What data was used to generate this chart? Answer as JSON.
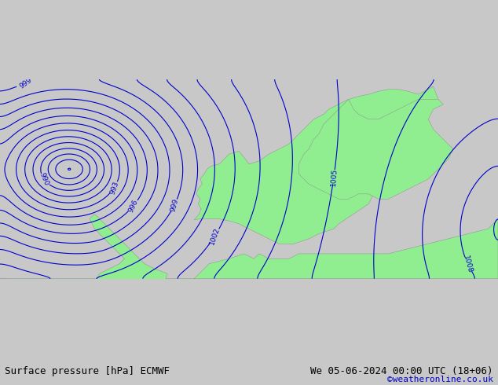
{
  "title_left": "Surface pressure [hPa] ECMWF",
  "title_right": "We 05-06-2024 00:00 UTC (18+06)",
  "copyright": "©weatheronline.co.uk",
  "bg_color": "#d0d0d0",
  "land_color": "#90EE90",
  "sea_color": "#d8e8f0",
  "contour_color": "#0000cc",
  "contour_label_color": "#0000cc",
  "font_color_title": "#000000",
  "font_color_copy": "#0000cc",
  "pressure_min": 983,
  "pressure_max": 1013,
  "contour_interval": 1,
  "figsize": [
    6.34,
    4.9
  ],
  "dpi": 100
}
